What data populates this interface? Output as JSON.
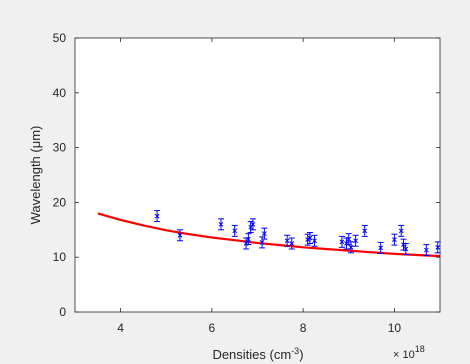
{
  "chart_data": {
    "type": "scatter",
    "xlabel": "Densities (cm",
    "xlabel_superscript": "-3",
    "xlabel_tail": ")",
    "ylabel": "Wavelength (μm)",
    "x_exponent_base": "× 10",
    "x_exponent_power": "18",
    "xlim": [
      3.0,
      11.0
    ],
    "ylim": [
      0,
      50
    ],
    "xticks": [
      4,
      6,
      8,
      10
    ],
    "yticks": [
      0,
      10,
      20,
      30,
      40,
      50
    ],
    "grid": false,
    "colors": {
      "fit_line": "#ff0000",
      "markers": "#0000ff",
      "axes": "#262626",
      "plot_background": "#ffffff",
      "figure_background": "#f0f0f0"
    },
    "series": [
      {
        "type": "line",
        "x": [
          3.5,
          4.0,
          4.5,
          5.0,
          5.5,
          6.0,
          6.5,
          7.0,
          7.5,
          8.0,
          8.5,
          9.0,
          9.5,
          10.0,
          10.5,
          11.0
        ],
        "y": [
          18.0,
          16.8,
          15.8,
          14.9,
          14.2,
          13.6,
          13.1,
          12.6,
          12.2,
          11.8,
          11.5,
          11.2,
          10.9,
          10.6,
          10.4,
          10.2
        ]
      },
      {
        "type": "errorbar",
        "x": [
          4.8,
          5.3,
          6.2,
          6.5,
          6.75,
          6.8,
          6.85,
          6.9,
          7.1,
          7.15,
          7.65,
          7.75,
          8.1,
          8.15,
          8.25,
          8.85,
          8.95,
          9.0,
          9.05,
          9.15,
          9.35,
          9.7,
          10.0,
          10.15,
          10.2,
          10.25,
          10.7,
          10.95
        ],
        "y": [
          17.5,
          14.0,
          16.0,
          14.8,
          12.5,
          13.3,
          15.5,
          16.0,
          12.7,
          14.3,
          13.0,
          12.5,
          13.2,
          13.5,
          13.0,
          12.8,
          12.5,
          13.3,
          11.8,
          13.0,
          14.8,
          11.7,
          13.2,
          14.8,
          12.3,
          11.5,
          11.3,
          11.8
        ],
        "err": [
          1.0,
          1.0,
          1.0,
          1.0,
          1.0,
          1.0,
          1.0,
          1.0,
          1.0,
          1.0,
          1.0,
          1.0,
          1.0,
          1.0,
          1.0,
          1.0,
          1.0,
          1.0,
          1.0,
          1.0,
          1.0,
          1.0,
          1.0,
          1.0,
          1.0,
          1.0,
          1.0,
          1.0
        ]
      }
    ]
  }
}
